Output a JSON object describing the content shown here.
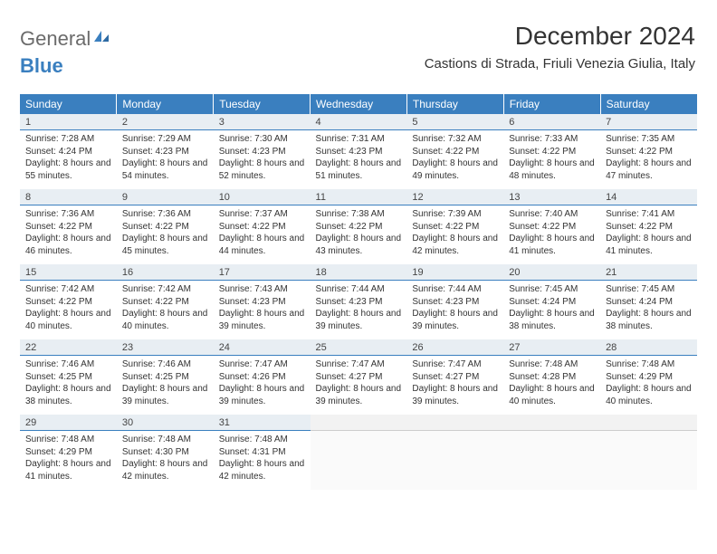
{
  "branding": {
    "logo_text_1": "General",
    "logo_text_2": "Blue",
    "logo_color_gray": "#6b6b6b",
    "logo_color_blue": "#3a7fbf"
  },
  "header": {
    "title": "December 2024",
    "location": "Castions di Strada, Friuli Venezia Giulia, Italy"
  },
  "colors": {
    "header_bg": "#3a7fbf",
    "header_text": "#ffffff",
    "daynum_bg": "#e8eef3",
    "daynum_border": "#3a7fbf",
    "body_text": "#333333"
  },
  "weekdays": [
    "Sunday",
    "Monday",
    "Tuesday",
    "Wednesday",
    "Thursday",
    "Friday",
    "Saturday"
  ],
  "weeks": [
    [
      {
        "day": "1",
        "sunrise": "Sunrise: 7:28 AM",
        "sunset": "Sunset: 4:24 PM",
        "daylight": "Daylight: 8 hours and 55 minutes."
      },
      {
        "day": "2",
        "sunrise": "Sunrise: 7:29 AM",
        "sunset": "Sunset: 4:23 PM",
        "daylight": "Daylight: 8 hours and 54 minutes."
      },
      {
        "day": "3",
        "sunrise": "Sunrise: 7:30 AM",
        "sunset": "Sunset: 4:23 PM",
        "daylight": "Daylight: 8 hours and 52 minutes."
      },
      {
        "day": "4",
        "sunrise": "Sunrise: 7:31 AM",
        "sunset": "Sunset: 4:23 PM",
        "daylight": "Daylight: 8 hours and 51 minutes."
      },
      {
        "day": "5",
        "sunrise": "Sunrise: 7:32 AM",
        "sunset": "Sunset: 4:22 PM",
        "daylight": "Daylight: 8 hours and 49 minutes."
      },
      {
        "day": "6",
        "sunrise": "Sunrise: 7:33 AM",
        "sunset": "Sunset: 4:22 PM",
        "daylight": "Daylight: 8 hours and 48 minutes."
      },
      {
        "day": "7",
        "sunrise": "Sunrise: 7:35 AM",
        "sunset": "Sunset: 4:22 PM",
        "daylight": "Daylight: 8 hours and 47 minutes."
      }
    ],
    [
      {
        "day": "8",
        "sunrise": "Sunrise: 7:36 AM",
        "sunset": "Sunset: 4:22 PM",
        "daylight": "Daylight: 8 hours and 46 minutes."
      },
      {
        "day": "9",
        "sunrise": "Sunrise: 7:36 AM",
        "sunset": "Sunset: 4:22 PM",
        "daylight": "Daylight: 8 hours and 45 minutes."
      },
      {
        "day": "10",
        "sunrise": "Sunrise: 7:37 AM",
        "sunset": "Sunset: 4:22 PM",
        "daylight": "Daylight: 8 hours and 44 minutes."
      },
      {
        "day": "11",
        "sunrise": "Sunrise: 7:38 AM",
        "sunset": "Sunset: 4:22 PM",
        "daylight": "Daylight: 8 hours and 43 minutes."
      },
      {
        "day": "12",
        "sunrise": "Sunrise: 7:39 AM",
        "sunset": "Sunset: 4:22 PM",
        "daylight": "Daylight: 8 hours and 42 minutes."
      },
      {
        "day": "13",
        "sunrise": "Sunrise: 7:40 AM",
        "sunset": "Sunset: 4:22 PM",
        "daylight": "Daylight: 8 hours and 41 minutes."
      },
      {
        "day": "14",
        "sunrise": "Sunrise: 7:41 AM",
        "sunset": "Sunset: 4:22 PM",
        "daylight": "Daylight: 8 hours and 41 minutes."
      }
    ],
    [
      {
        "day": "15",
        "sunrise": "Sunrise: 7:42 AM",
        "sunset": "Sunset: 4:22 PM",
        "daylight": "Daylight: 8 hours and 40 minutes."
      },
      {
        "day": "16",
        "sunrise": "Sunrise: 7:42 AM",
        "sunset": "Sunset: 4:22 PM",
        "daylight": "Daylight: 8 hours and 40 minutes."
      },
      {
        "day": "17",
        "sunrise": "Sunrise: 7:43 AM",
        "sunset": "Sunset: 4:23 PM",
        "daylight": "Daylight: 8 hours and 39 minutes."
      },
      {
        "day": "18",
        "sunrise": "Sunrise: 7:44 AM",
        "sunset": "Sunset: 4:23 PM",
        "daylight": "Daylight: 8 hours and 39 minutes."
      },
      {
        "day": "19",
        "sunrise": "Sunrise: 7:44 AM",
        "sunset": "Sunset: 4:23 PM",
        "daylight": "Daylight: 8 hours and 39 minutes."
      },
      {
        "day": "20",
        "sunrise": "Sunrise: 7:45 AM",
        "sunset": "Sunset: 4:24 PM",
        "daylight": "Daylight: 8 hours and 38 minutes."
      },
      {
        "day": "21",
        "sunrise": "Sunrise: 7:45 AM",
        "sunset": "Sunset: 4:24 PM",
        "daylight": "Daylight: 8 hours and 38 minutes."
      }
    ],
    [
      {
        "day": "22",
        "sunrise": "Sunrise: 7:46 AM",
        "sunset": "Sunset: 4:25 PM",
        "daylight": "Daylight: 8 hours and 38 minutes."
      },
      {
        "day": "23",
        "sunrise": "Sunrise: 7:46 AM",
        "sunset": "Sunset: 4:25 PM",
        "daylight": "Daylight: 8 hours and 39 minutes."
      },
      {
        "day": "24",
        "sunrise": "Sunrise: 7:47 AM",
        "sunset": "Sunset: 4:26 PM",
        "daylight": "Daylight: 8 hours and 39 minutes."
      },
      {
        "day": "25",
        "sunrise": "Sunrise: 7:47 AM",
        "sunset": "Sunset: 4:27 PM",
        "daylight": "Daylight: 8 hours and 39 minutes."
      },
      {
        "day": "26",
        "sunrise": "Sunrise: 7:47 AM",
        "sunset": "Sunset: 4:27 PM",
        "daylight": "Daylight: 8 hours and 39 minutes."
      },
      {
        "day": "27",
        "sunrise": "Sunrise: 7:48 AM",
        "sunset": "Sunset: 4:28 PM",
        "daylight": "Daylight: 8 hours and 40 minutes."
      },
      {
        "day": "28",
        "sunrise": "Sunrise: 7:48 AM",
        "sunset": "Sunset: 4:29 PM",
        "daylight": "Daylight: 8 hours and 40 minutes."
      }
    ],
    [
      {
        "day": "29",
        "sunrise": "Sunrise: 7:48 AM",
        "sunset": "Sunset: 4:29 PM",
        "daylight": "Daylight: 8 hours and 41 minutes."
      },
      {
        "day": "30",
        "sunrise": "Sunrise: 7:48 AM",
        "sunset": "Sunset: 4:30 PM",
        "daylight": "Daylight: 8 hours and 42 minutes."
      },
      {
        "day": "31",
        "sunrise": "Sunrise: 7:48 AM",
        "sunset": "Sunset: 4:31 PM",
        "daylight": "Daylight: 8 hours and 42 minutes."
      },
      null,
      null,
      null,
      null
    ]
  ]
}
